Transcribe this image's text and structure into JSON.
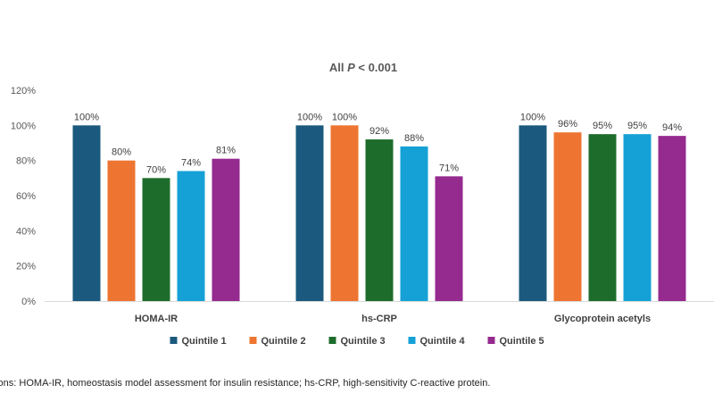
{
  "chart_data": {
    "type": "bar",
    "title": "All P < 0.001",
    "title_parts": [
      "All ",
      "P",
      " < 0.001"
    ],
    "categories": [
      "HOMA-IR",
      "hs-CRP",
      "Glycoprotein acetyls"
    ],
    "series": [
      {
        "name": "Quintile 1",
        "color": "#1b5a7e",
        "values": [
          100,
          100,
          100
        ],
        "labels": [
          "100%",
          "100%",
          "100%"
        ]
      },
      {
        "name": "Quintile 2",
        "color": "#ed7531",
        "values": [
          80,
          100,
          96
        ],
        "labels": [
          "80%",
          "100%",
          "96%"
        ]
      },
      {
        "name": "Quintile 3",
        "color": "#1e6c2c",
        "values": [
          70,
          92,
          95
        ],
        "labels": [
          "70%",
          "92%",
          "95%"
        ]
      },
      {
        "name": "Quintile 4",
        "color": "#15a1d6",
        "values": [
          74,
          88,
          95
        ],
        "labels": [
          "74%",
          "88%",
          "95%"
        ]
      },
      {
        "name": "Quintile 5",
        "color": "#952a8f",
        "values": [
          81,
          71,
          94
        ],
        "labels": [
          "81%",
          "71%",
          "94%"
        ]
      }
    ],
    "ylim": [
      0,
      120
    ],
    "yticks": [
      0,
      20,
      40,
      60,
      80,
      100,
      120
    ],
    "ytick_labels": [
      "0%",
      "20%",
      "40%",
      "60%",
      "80%",
      "100%",
      "120%"
    ],
    "grid": false,
    "legend": "bottom"
  },
  "footnote": "viations: HOMA-IR, homeostasis model assessment for insulin resistance; hs-CRP, high-sensitivity C-reactive protein."
}
